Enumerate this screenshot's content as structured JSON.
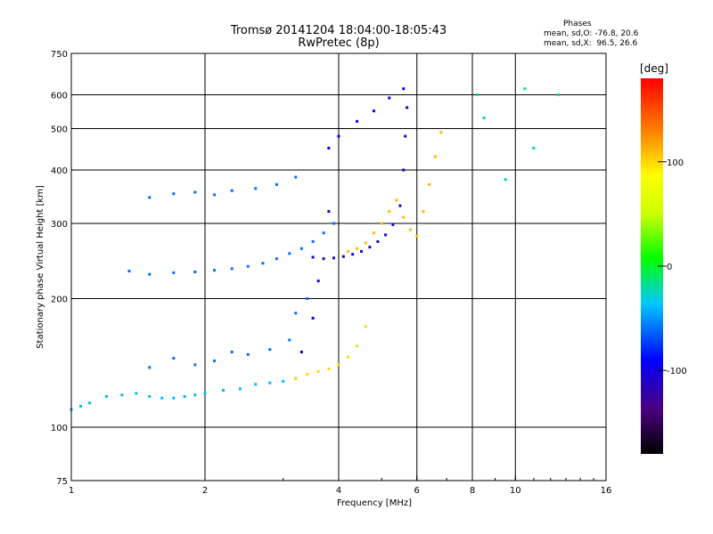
{
  "chart_data": {
    "type": "scatter",
    "title": "Tromsø 20141204 18:04:00-18:05:43",
    "subtitle": "RwPretec (8p)",
    "xlabel": "Frequency [MHz]",
    "ylabel": "Stationary phase Virtual Height [km]",
    "x_scale": "log",
    "y_scale": "log",
    "xlim": [
      1,
      16
    ],
    "ylim": [
      75,
      750
    ],
    "x_ticks": [
      1,
      2,
      4,
      6,
      8,
      10,
      16
    ],
    "y_ticks": [
      75,
      100,
      200,
      300,
      400,
      500,
      600,
      750
    ],
    "x_grid": [
      2,
      4,
      6,
      8,
      10
    ],
    "y_grid": [
      100,
      200,
      300,
      400,
      500,
      600
    ],
    "grid": true,
    "legend": {
      "title": "Phases",
      "lines": [
        "mean, sd,O: -76.8, 20.6",
        "mean, sd,X:  96.5, 26.6"
      ]
    },
    "colorbar": {
      "label": "[deg]",
      "range": [
        -180,
        180
      ],
      "ticks": [
        100,
        0,
        -100
      ]
    },
    "series": [
      {
        "x": [
          1.0,
          1.05,
          1.1,
          1.2,
          1.3,
          1.4,
          1.5,
          1.6,
          1.7,
          1.8,
          1.9,
          2.0,
          2.2,
          2.4,
          2.6,
          2.8,
          3.0,
          3.2
        ],
        "y": [
          110,
          112,
          114,
          118,
          119,
          120,
          118,
          117,
          117,
          118,
          119,
          120,
          122,
          123,
          126,
          127,
          128,
          130
        ],
        "phase": -40
      },
      {
        "x": [
          3.2,
          3.4,
          3.6,
          3.8,
          4.0,
          4.2,
          4.4,
          4.6
        ],
        "y": [
          130,
          133,
          135,
          137,
          140,
          146,
          155,
          172
        ],
        "phase": 100
      },
      {
        "x": [
          1.5,
          1.7,
          1.9,
          2.1,
          2.3,
          2.5,
          2.8,
          3.1,
          3.2,
          3.4
        ],
        "y": [
          138,
          145,
          140,
          143,
          150,
          148,
          152,
          160,
          185,
          200
        ],
        "phase": -60
      },
      {
        "x": [
          3.3,
          3.5,
          3.6,
          3.8
        ],
        "y": [
          150,
          180,
          220,
          320
        ],
        "phase": -100
      },
      {
        "x": [
          1.35,
          1.5,
          1.7,
          1.9,
          2.1,
          2.3,
          2.5,
          2.7,
          2.9,
          3.1,
          3.3,
          3.5,
          3.7,
          3.9
        ],
        "y": [
          232,
          228,
          230,
          231,
          233,
          235,
          238,
          242,
          248,
          255,
          262,
          272,
          285,
          300
        ],
        "phase": -60
      },
      {
        "x": [
          3.5,
          3.7,
          3.9,
          4.1,
          4.3,
          4.5,
          4.7,
          4.9,
          5.1,
          5.3,
          5.5,
          5.6,
          5.65,
          5.7
        ],
        "y": [
          250,
          248,
          249,
          251,
          254,
          258,
          264,
          272,
          282,
          298,
          330,
          400,
          480,
          560
        ],
        "phase": -110
      },
      {
        "x": [
          4.2,
          4.4,
          4.6,
          4.8,
          5.0,
          5.2,
          5.4,
          5.6,
          5.8,
          6.0
        ],
        "y": [
          258,
          262,
          270,
          285,
          300,
          320,
          340,
          310,
          290,
          280
        ],
        "phase": 110
      },
      {
        "x": [
          1.5,
          1.7,
          1.9,
          2.1,
          2.3,
          2.6,
          2.9,
          3.2
        ],
        "y": [
          345,
          352,
          355,
          350,
          358,
          362,
          370,
          385
        ],
        "phase": -60
      },
      {
        "x": [
          3.8,
          4.0,
          4.4,
          4.8,
          5.2,
          5.6
        ],
        "y": [
          450,
          480,
          520,
          550,
          590,
          620
        ],
        "phase": -90
      },
      {
        "x": [
          6.2,
          6.4,
          6.6,
          6.8
        ],
        "y": [
          320,
          370,
          430,
          490
        ],
        "phase": 110
      },
      {
        "x": [
          8.2,
          8.5,
          9.5,
          10.5,
          11.0,
          12.5
        ],
        "y": [
          600,
          530,
          380,
          620,
          450,
          600
        ],
        "phase": -20
      }
    ]
  }
}
